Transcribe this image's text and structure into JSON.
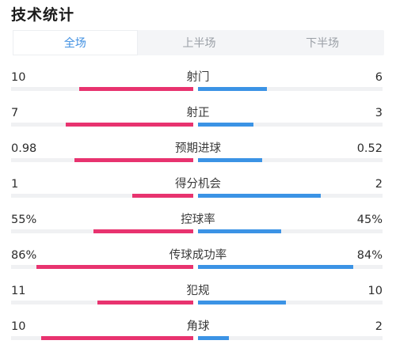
{
  "title": "技术统计",
  "tabs": [
    {
      "label": "全场",
      "active": true
    },
    {
      "label": "上半场",
      "active": false
    },
    {
      "label": "下半场",
      "active": false
    }
  ],
  "colors": {
    "home": "#e8336f",
    "away": "#3b93e5",
    "active_tab": "#3f8fe2"
  },
  "stats": [
    {
      "name": "射门",
      "home": "10",
      "away": "6",
      "home_share": 0.625,
      "away_share": 0.375
    },
    {
      "name": "射正",
      "home": "7",
      "away": "3",
      "home_share": 0.7,
      "away_share": 0.3
    },
    {
      "name": "预期进球",
      "home": "0.98",
      "away": "0.52",
      "home_share": 0.653,
      "away_share": 0.347
    },
    {
      "name": "得分机会",
      "home": "1",
      "away": "2",
      "home_share": 0.333,
      "away_share": 0.667
    },
    {
      "name": "控球率",
      "home": "55%",
      "away": "45%",
      "home_share": 0.55,
      "away_share": 0.45
    },
    {
      "name": "传球成功率",
      "home": "86%",
      "away": "84%",
      "home_share": 0.86,
      "away_share": 0.84
    },
    {
      "name": "犯规",
      "home": "11",
      "away": "10",
      "home_share": 0.524,
      "away_share": 0.476
    },
    {
      "name": "角球",
      "home": "10",
      "away": "2",
      "home_share": 0.833,
      "away_share": 0.167
    }
  ]
}
